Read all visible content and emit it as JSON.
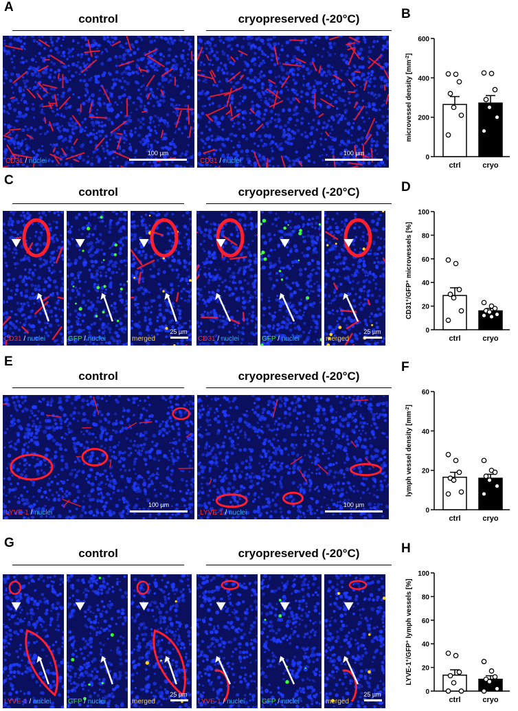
{
  "panels": {
    "A": {
      "letter": "A",
      "control_title": "control",
      "cryo_title": "cryopreserved (-20°C)",
      "control_image": {
        "marker": "CD31",
        "sep": " / ",
        "counter": "nuclei",
        "scale": "100 µm"
      },
      "cryo_image": {
        "marker": "CD31",
        "sep": " / ",
        "counter": "nuclei",
        "scale": "100 µm"
      }
    },
    "C": {
      "letter": "C",
      "control_title": "control",
      "cryo_title": "cryopreserved (-20°C)",
      "images": [
        {
          "marker": "CD31",
          "sep": " / ",
          "counter": "nuclei"
        },
        {
          "marker": "GFP",
          "sep": " / ",
          "counter": "nuclei"
        },
        {
          "marker": "merged",
          "scale": "25 µm"
        },
        {
          "marker": "CD31",
          "sep": " / ",
          "counter": "nuclei"
        },
        {
          "marker": "GFP",
          "sep": " / ",
          "counter": "nuclei"
        },
        {
          "marker": "merged",
          "scale": "25 µm"
        }
      ]
    },
    "E": {
      "letter": "E",
      "control_title": "control",
      "cryo_title": "cryopreserved (-20°C)",
      "control_image": {
        "marker": "LYVE-1",
        "sep": " / ",
        "counter": "nuclei",
        "scale": "100 µm"
      },
      "cryo_image": {
        "marker": "LYVE-1",
        "sep": " / ",
        "counter": "nuclei",
        "scale": "100 µm"
      }
    },
    "G": {
      "letter": "G",
      "control_title": "control",
      "cryo_title": "cryopreserved (-20°C)",
      "images": [
        {
          "marker": "LYVE-1",
          "sep": " / ",
          "counter": "nuclei"
        },
        {
          "marker": "GFP",
          "sep": " / ",
          "counter": "nuclei"
        },
        {
          "marker": "merged",
          "scale": "25 µm"
        },
        {
          "marker": "LYVE-1",
          "sep": " / ",
          "counter": "nuclei"
        },
        {
          "marker": "GFP",
          "sep": " / ",
          "counter": "nuclei"
        },
        {
          "marker": "merged",
          "scale": "25 µm"
        }
      ]
    }
  },
  "colors": {
    "tissue_bg": "#0a0f5e",
    "nuclei": "#1f3cff",
    "cd31_red": "#ff1f2f",
    "gfp_green": "#3cff3c",
    "merged_yellow": "#ffd21e",
    "ctrl_bar": "#ffffff",
    "cryo_bar": "#000000"
  },
  "chart_data": [
    {
      "id": "B",
      "letter": "B",
      "type": "bar",
      "categories": [
        "ctrl",
        "cryo"
      ],
      "values": [
        265,
        272
      ],
      "errors": [
        40,
        38
      ],
      "points": [
        [
          420,
          418,
          380,
          320,
          250,
          210,
          110
        ],
        [
          425,
          422,
          340,
          290,
          250,
          200,
          130
        ]
      ],
      "ylabel": "microvessel density [mm",
      "ylabel_sup": "-2",
      "ylabel_end": "]",
      "ylim": [
        0,
        600
      ],
      "yticks": [
        0,
        200,
        400,
        600
      ]
    },
    {
      "id": "D",
      "letter": "D",
      "type": "bar",
      "categories": [
        "ctrl",
        "cryo"
      ],
      "values": [
        29,
        16
      ],
      "errors": [
        6.5,
        2
      ],
      "points": [
        [
          59,
          56,
          34,
          30,
          27,
          16,
          8
        ],
        [
          23,
          20,
          18,
          16,
          15,
          13,
          12,
          11
        ]
      ],
      "ylabel_parts": [
        "CD31",
        "+",
        "/GFP",
        "+",
        " microvessels [%]"
      ],
      "ylim": [
        0,
        100
      ],
      "yticks": [
        0,
        20,
        40,
        60,
        80,
        100
      ]
    },
    {
      "id": "F",
      "letter": "F",
      "type": "bar",
      "categories": [
        "ctrl",
        "cryo"
      ],
      "values": [
        16.5,
        16
      ],
      "errors": [
        2.5,
        2
      ],
      "points": [
        [
          28,
          25,
          19,
          16,
          15,
          9,
          8
        ],
        [
          25,
          20,
          19,
          17,
          15,
          12,
          8
        ]
      ],
      "ylabel": "lymph vessel density [mm",
      "ylabel_sup": "-2",
      "ylabel_end": "]",
      "ylim": [
        0,
        60
      ],
      "yticks": [
        0,
        20,
        40,
        60
      ]
    },
    {
      "id": "H",
      "letter": "H",
      "type": "bar",
      "categories": [
        "ctrl",
        "cryo"
      ],
      "values": [
        13.5,
        10
      ],
      "errors": [
        4.5,
        3
      ],
      "points": [
        [
          32,
          30,
          16,
          13,
          7,
          0,
          0
        ],
        [
          25,
          17,
          12,
          10,
          8,
          2,
          0
        ]
      ],
      "ylabel_parts": [
        "LYVE-1",
        "+",
        "/GFP",
        "+",
        " lymph vessels [%]"
      ],
      "ylim": [
        0,
        100
      ],
      "yticks": [
        0,
        20,
        40,
        60,
        80,
        100
      ]
    }
  ]
}
